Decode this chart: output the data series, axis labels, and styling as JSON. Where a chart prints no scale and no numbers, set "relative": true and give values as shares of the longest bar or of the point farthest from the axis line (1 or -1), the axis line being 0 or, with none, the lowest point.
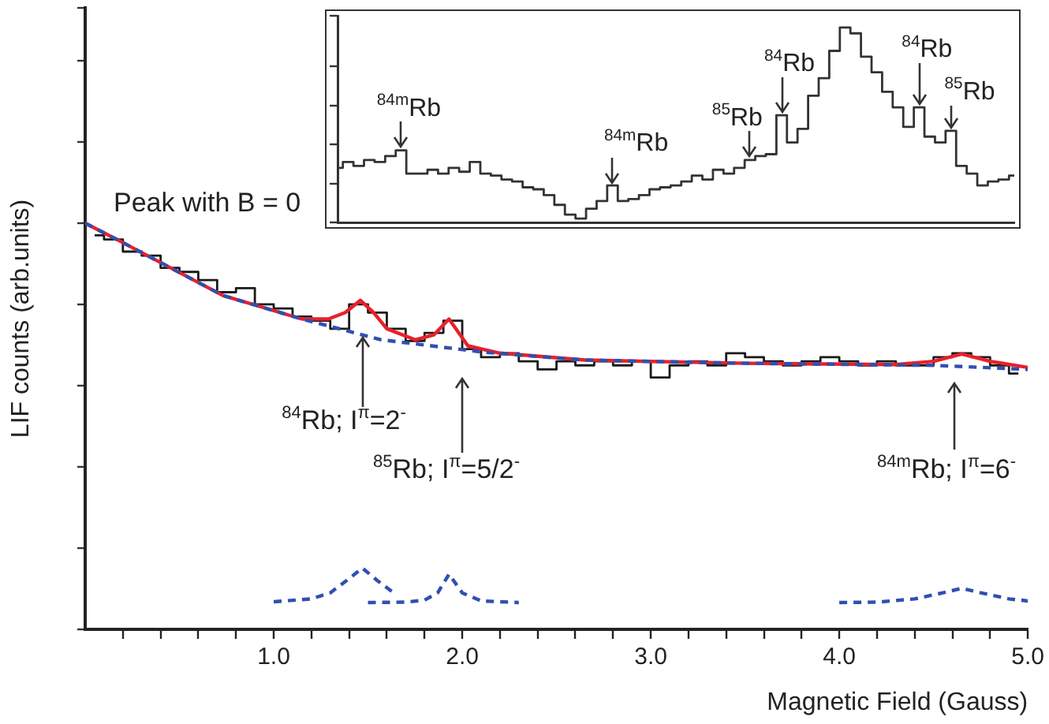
{
  "chart_data": [
    {
      "type": "step",
      "xlabel": "Magnetic Field (Gauss)",
      "ylabel": "LIF counts (arb.units)",
      "relative": true,
      "tick_labels": "x",
      "xlim": [
        0,
        5
      ],
      "xticks": [
        {
          "value": 0.2,
          "label": null
        },
        {
          "value": 0.4,
          "label": null
        },
        {
          "value": 0.6,
          "label": null
        },
        {
          "value": 0.8,
          "label": null
        },
        {
          "value": 1,
          "label": "1.0"
        },
        {
          "value": 1.2,
          "label": null
        },
        {
          "value": 1.4,
          "label": null
        },
        {
          "value": 1.6,
          "label": null
        },
        {
          "value": 1.8,
          "label": null
        },
        {
          "value": 2,
          "label": "2.0"
        },
        {
          "value": 2.2,
          "label": null
        },
        {
          "value": 2.4,
          "label": null
        },
        {
          "value": 2.6,
          "label": null
        },
        {
          "value": 2.8,
          "label": null
        },
        {
          "value": 3,
          "label": "3.0"
        },
        {
          "value": 3.2,
          "label": null
        },
        {
          "value": 3.4,
          "label": null
        },
        {
          "value": 3.6,
          "label": null
        },
        {
          "value": 3.8,
          "label": null
        },
        {
          "value": 4,
          "label": "4.0"
        },
        {
          "value": 4.2,
          "label": null
        },
        {
          "value": 4.4,
          "label": null
        },
        {
          "value": 4.6,
          "label": null
        },
        {
          "value": 4.8,
          "label": null
        },
        {
          "value": 5,
          "label": "5.0"
        }
      ],
      "x": [
        0.05,
        0.15,
        0.25,
        0.35,
        0.45,
        0.55,
        0.65,
        0.75,
        0.85,
        0.95,
        1.05,
        1.15,
        1.25,
        1.35,
        1.45,
        1.55,
        1.65,
        1.75,
        1.85,
        1.95,
        2.05,
        2.15,
        2.25,
        2.35,
        2.45,
        2.55,
        2.65,
        2.75,
        2.85,
        2.95,
        3.05,
        3.15,
        3.25,
        3.35,
        3.45,
        3.55,
        3.65,
        3.75,
        3.85,
        3.95,
        4.05,
        4.15,
        4.25,
        4.35,
        4.45,
        4.55,
        4.65,
        4.75,
        4.85,
        4.95
      ],
      "series": [
        {
          "color": "#1a1a1a",
          "values": [
            0.97,
            0.96,
            0.93,
            0.92,
            0.89,
            0.88,
            0.86,
            0.83,
            0.84,
            0.8,
            0.79,
            0.77,
            0.76,
            0.74,
            0.8,
            0.78,
            0.74,
            0.71,
            0.73,
            0.76,
            0.69,
            0.67,
            0.68,
            0.66,
            0.64,
            0.66,
            0.65,
            0.66,
            0.65,
            0.66,
            0.62,
            0.65,
            0.66,
            0.65,
            0.68,
            0.67,
            0.66,
            0.65,
            0.66,
            0.67,
            0.66,
            0.65,
            0.66,
            0.65,
            0.65,
            0.67,
            0.68,
            0.67,
            0.65,
            0.63
          ]
        },
        {
          "type": "line",
          "color": "#e8202a",
          "line_style": "solid",
          "x": [
            0,
            0.18,
            0.73,
            1.15,
            1.29,
            1.38,
            1.46,
            1.53,
            1.6,
            1.75,
            1.85,
            1.93,
            2.03,
            2.2,
            2.65,
            3.5,
            4.3,
            4.5,
            4.65,
            4.8,
            5
          ],
          "values": [
            1,
            0.957,
            0.822,
            0.764,
            0.764,
            0.78,
            0.81,
            0.78,
            0.74,
            0.713,
            0.725,
            0.764,
            0.698,
            0.68,
            0.663,
            0.655,
            0.652,
            0.66,
            0.678,
            0.66,
            0.645
          ]
        },
        {
          "type": "line",
          "color": "#3050b0",
          "line_style": "dashed",
          "x": [
            0,
            0.18,
            0.73,
            1.15,
            1.57,
            2.12,
            2.65,
            3.5,
            4.5,
            5
          ],
          "values": [
            1,
            0.957,
            0.822,
            0.764,
            0.713,
            0.682,
            0.663,
            0.655,
            0.65,
            0.64
          ]
        },
        {
          "type": "line",
          "color": "#3050b0",
          "line_style": "dashed",
          "x": [
            1,
            1.2,
            1.3,
            1.4,
            1.47,
            1.55,
            1.65
          ],
          "values": [
            0.068,
            0.075,
            0.09,
            0.125,
            0.151,
            0.12,
            0.085
          ]
        },
        {
          "type": "line",
          "color": "#3050b0",
          "line_style": "dashed",
          "x": [
            1.5,
            1.7,
            1.8,
            1.87,
            1.93,
            2,
            2.1,
            2.3
          ],
          "values": [
            0.066,
            0.067,
            0.072,
            0.09,
            0.136,
            0.09,
            0.07,
            0.066
          ]
        },
        {
          "type": "line",
          "color": "#3050b0",
          "line_style": "dashed",
          "x": [
            4,
            4.2,
            4.4,
            4.55,
            4.65,
            4.75,
            4.9,
            5
          ],
          "values": [
            0.066,
            0.067,
            0.075,
            0.09,
            0.101,
            0.09,
            0.075,
            0.07
          ]
        }
      ],
      "annotations": [
        "Peak with B = 0",
        "$^{84}$Rb; I$^{π}$=2$^{-}$",
        "$^{85}$Rb; I$^{π}$=5/2$^{-}$",
        "$^{84m}$Rb; I$^{π}$=6$^{-}$"
      ]
    },
    {
      "type": "step",
      "relative": true,
      "tick_labels": false,
      "color": "#333333",
      "categories": [
        null,
        null,
        null,
        null,
        null,
        null,
        null,
        null,
        null,
        null,
        null,
        null,
        null,
        null,
        null,
        null,
        null,
        null,
        null,
        null,
        null,
        null,
        null,
        null,
        null,
        null,
        null,
        null,
        null,
        null,
        null,
        null,
        null,
        null,
        null,
        null,
        null,
        null,
        null,
        null,
        null,
        null,
        null,
        null,
        null,
        null,
        null,
        null,
        null,
        null,
        null,
        null,
        null,
        null,
        null,
        null,
        null,
        null,
        null,
        null,
        null,
        null,
        null,
        null,
        null
      ],
      "values": [
        0.28,
        0.31,
        0.29,
        0.32,
        0.31,
        0.34,
        0.37,
        0.25,
        0.25,
        0.27,
        0.25,
        0.28,
        0.26,
        0.31,
        0.25,
        0.24,
        0.22,
        0.21,
        0.18,
        0.17,
        0.14,
        0.09,
        0.04,
        0.02,
        0.07,
        0.11,
        0.19,
        0.11,
        0.12,
        0.14,
        0.17,
        0.18,
        0.19,
        0.21,
        0.24,
        0.22,
        0.27,
        0.25,
        0.28,
        0.32,
        0.34,
        0.35,
        0.55,
        0.41,
        0.48,
        0.65,
        0.74,
        0.88,
        1.0,
        0.97,
        0.85,
        0.77,
        0.67,
        0.59,
        0.49,
        0.59,
        0.44,
        0.41,
        0.47,
        0.29,
        0.25,
        0.19,
        0.21,
        0.22,
        0.24
      ],
      "annotations": [
        "$^{84m}$Rb",
        "$^{84m}$Rb",
        "$^{85}$Rb",
        "$^{84}$Rb",
        "$^{84}$Rb",
        "$^{85}$Rb"
      ]
    }
  ]
}
